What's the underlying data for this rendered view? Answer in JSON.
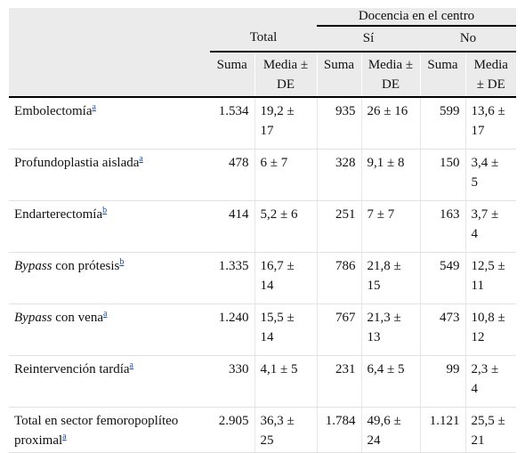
{
  "header": {
    "group_label": "Docencia en el centro",
    "total_label": "Total",
    "si_label": "Sí",
    "no_label": "No",
    "col_suma": "Suma",
    "col_media_line1": "Media ±",
    "col_media_line2": "DE",
    "col_media_no_line1": "Media",
    "col_media_no_line2": "± DE"
  },
  "rows": [
    {
      "label": "Embolectomía",
      "label_italic": "",
      "label_rest": "",
      "fn": "a",
      "total_suma": "1.534",
      "total_media_1": "19,2 ±",
      "total_media_2": "17",
      "si_suma": "935",
      "si_media_1": "26 ± 16",
      "si_media_2": "",
      "no_suma": "599",
      "no_media_1": "13,6 ±",
      "no_media_2": "17"
    },
    {
      "label": "Profundoplastia aislada",
      "label_italic": "",
      "label_rest": "",
      "fn": "a",
      "total_suma": "478",
      "total_media_1": "6 ± 7",
      "total_media_2": "",
      "si_suma": "328",
      "si_media_1": "9,1 ± 8",
      "si_media_2": "",
      "no_suma": "150",
      "no_media_1": "3,4 ±",
      "no_media_2": "5"
    },
    {
      "label": "Endarterectomía",
      "label_italic": "",
      "label_rest": "",
      "fn": "b",
      "total_suma": "414",
      "total_media_1": "5,2 ± 6",
      "total_media_2": "",
      "si_suma": "251",
      "si_media_1": "7 ± 7",
      "si_media_2": "",
      "no_suma": "163",
      "no_media_1": "3,7 ±",
      "no_media_2": "4"
    },
    {
      "label": "",
      "label_italic": "Bypass",
      "label_rest": " con prótesis",
      "fn": "b",
      "total_suma": "1.335",
      "total_media_1": "16,7 ±",
      "total_media_2": "14",
      "si_suma": "786",
      "si_media_1": "21,8 ±",
      "si_media_2": "15",
      "no_suma": "549",
      "no_media_1": "12,5 ±",
      "no_media_2": "11"
    },
    {
      "label": "",
      "label_italic": "Bypass",
      "label_rest": " con vena",
      "fn": "a",
      "total_suma": "1.240",
      "total_media_1": "15,5 ±",
      "total_media_2": "14",
      "si_suma": "767",
      "si_media_1": "21,3 ±",
      "si_media_2": "13",
      "no_suma": "473",
      "no_media_1": "10,8 ±",
      "no_media_2": "12"
    },
    {
      "label": "Reintervención tardía",
      "label_italic": "",
      "label_rest": "",
      "fn": "a",
      "total_suma": "330",
      "total_media_1": "4,1 ± 5",
      "total_media_2": "",
      "si_suma": "231",
      "si_media_1": "6,4 ± 5",
      "si_media_2": "",
      "no_suma": "99",
      "no_media_1": "2,3 ±",
      "no_media_2": "4"
    },
    {
      "label": "Total en sector femoropoplíteo proximal",
      "label_italic": "",
      "label_rest": "",
      "fn": "a",
      "total_suma": "2.905",
      "total_media_1": "36,3 ±",
      "total_media_2": "25",
      "si_suma": "1.784",
      "si_media_1": "49,6 ±",
      "si_media_2": "24",
      "no_suma": "1.121",
      "no_media_1": "25,5 ±",
      "no_media_2": "21"
    }
  ]
}
